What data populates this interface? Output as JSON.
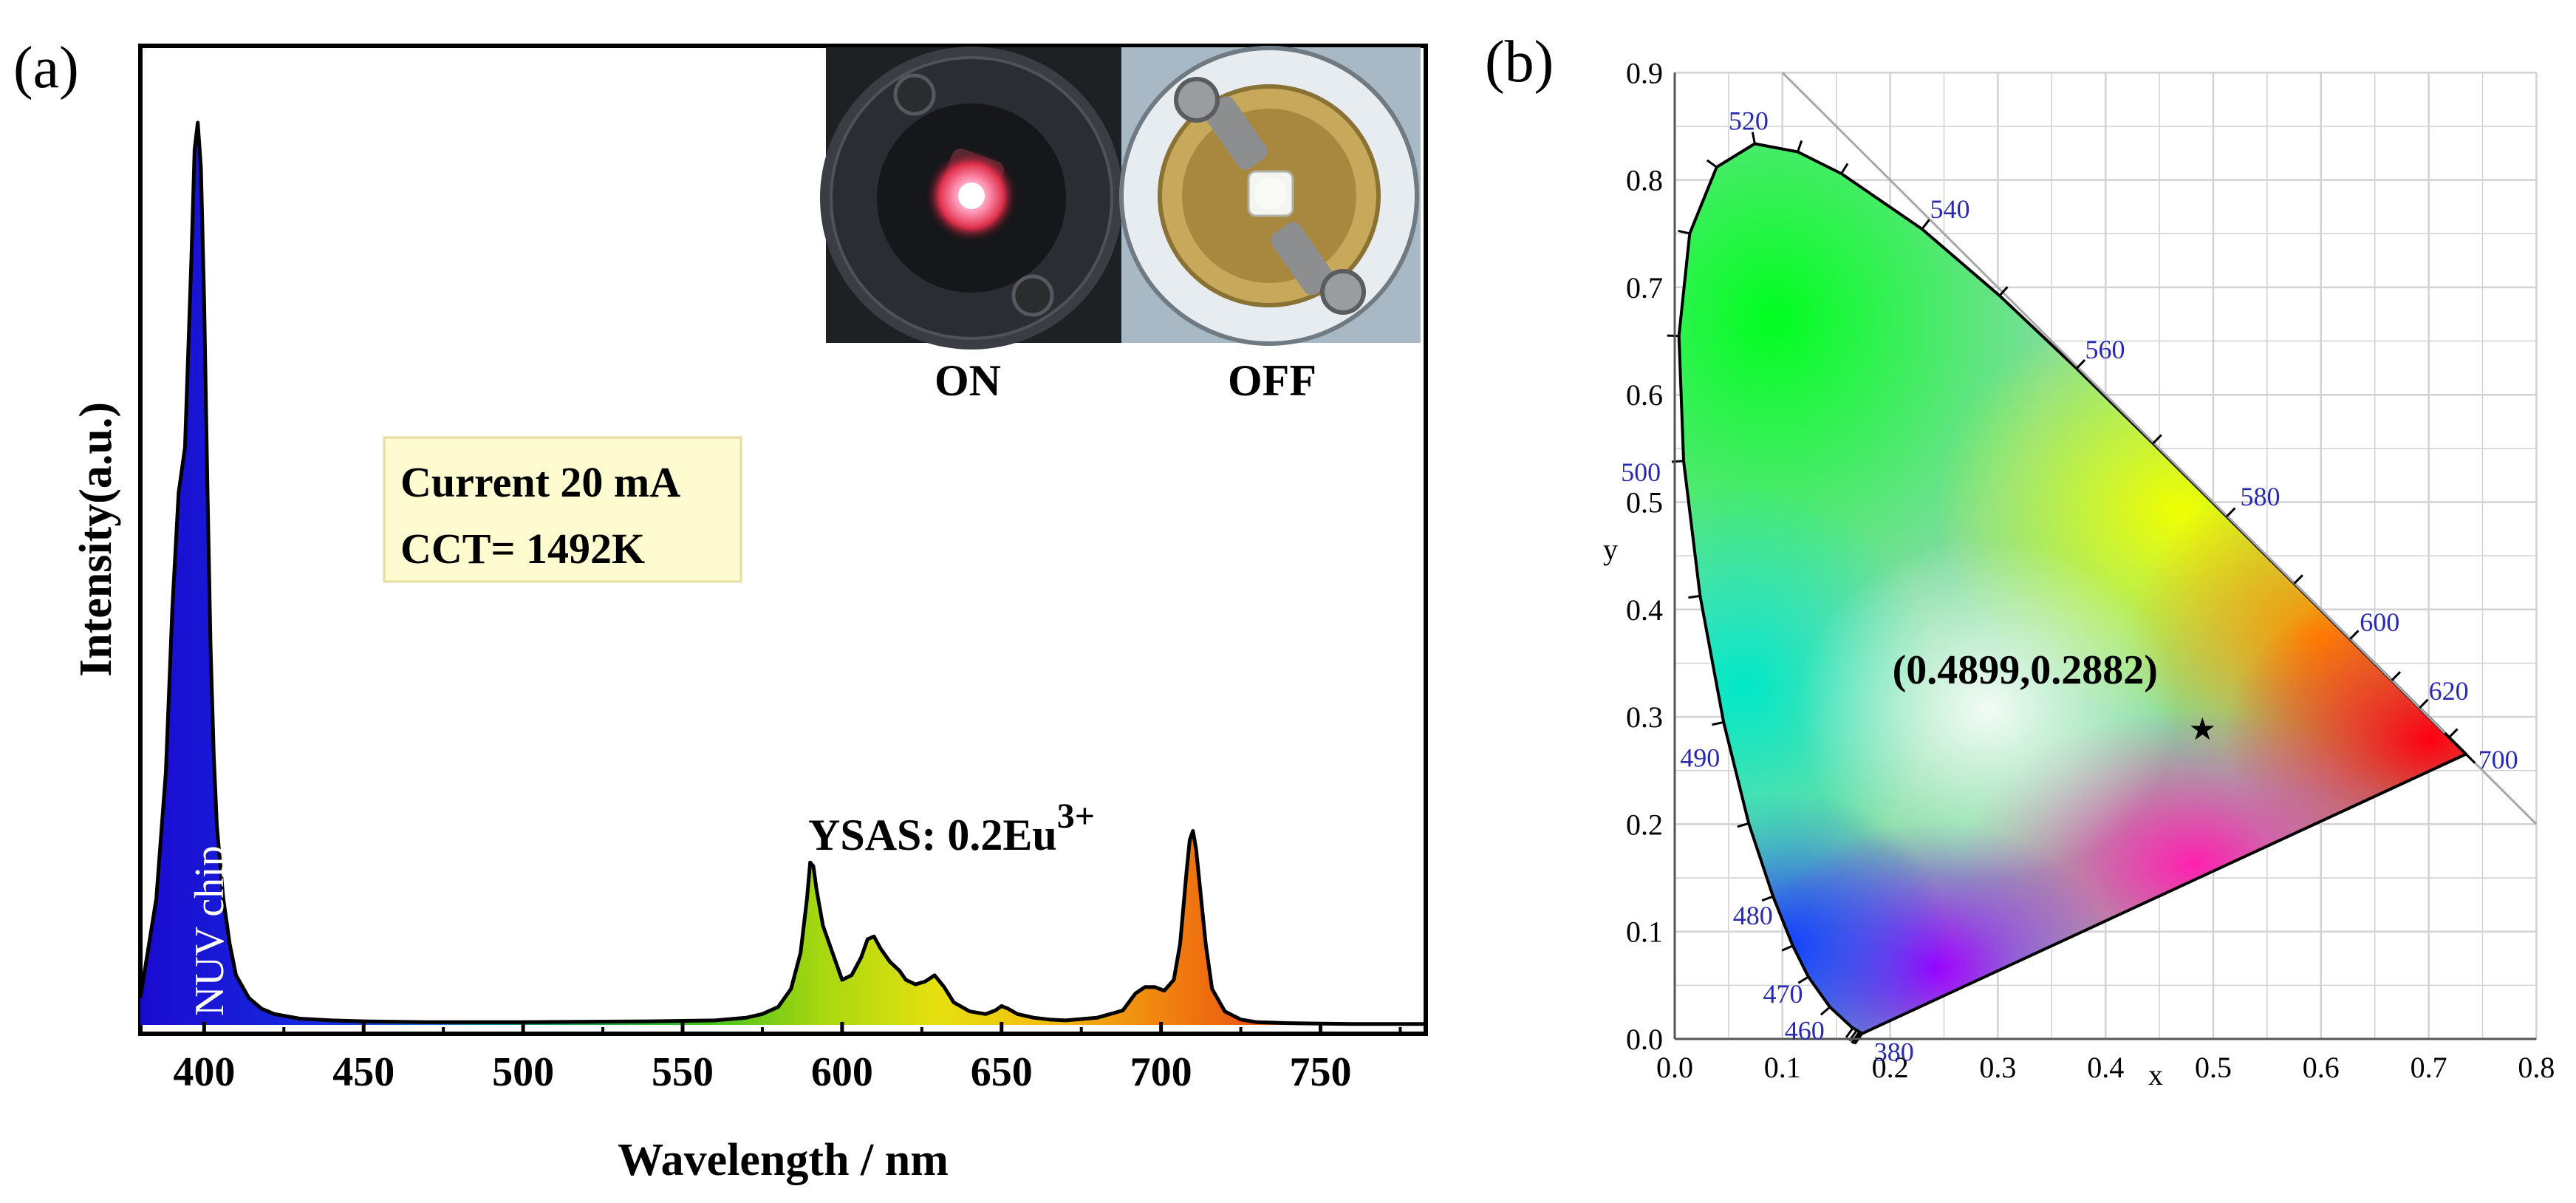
{
  "panels": {
    "a": {
      "label": "(a)"
    },
    "b": {
      "label": "(b)"
    }
  },
  "colors": {
    "nuv_fill": "#1010c8",
    "legend_bg": "#fffbd0",
    "legend_border": "#e6dca0",
    "axis": "#000000",
    "cie_label": "#2a2ab0",
    "cie_grid": "#c8c8c8"
  },
  "chart_data": [
    {
      "id": "spectrum",
      "type": "area",
      "title": "",
      "xlabel": "Wavelength / nm",
      "ylabel": "Intensity(a.u.)",
      "xlim": [
        380,
        783
      ],
      "ylim": [
        0,
        1.08
      ],
      "x_ticks": [
        400,
        450,
        500,
        550,
        600,
        650,
        700,
        750
      ],
      "x_tick_labels": [
        "400",
        "450",
        "500",
        "550",
        "600",
        "650",
        "700",
        "750"
      ],
      "y_ticks_shown": false,
      "series": [
        {
          "name": "NUV chip",
          "x": [
            380,
            385,
            388,
            390,
            392,
            394,
            396,
            397,
            398,
            399,
            400,
            401,
            402,
            403,
            404,
            406,
            408,
            410,
            414,
            418,
            422,
            430,
            440,
            450,
            470,
            500,
            540,
            560,
            570,
            575,
            580,
            584,
            587,
            589,
            590,
            591,
            592,
            594,
            596,
            598,
            600,
            603,
            606,
            608,
            610,
            612,
            615,
            618,
            620,
            623,
            626,
            629,
            632,
            635,
            640,
            645,
            648,
            650,
            652,
            655,
            660,
            665,
            670,
            680,
            688,
            692,
            695,
            698,
            701,
            704,
            706,
            708,
            709,
            710,
            711,
            712,
            714,
            716,
            720,
            725,
            730,
            740,
            760,
            783
          ],
          "values": [
            0.03,
            0.14,
            0.28,
            0.46,
            0.59,
            0.64,
            0.85,
            0.97,
            1.0,
            0.95,
            0.8,
            0.6,
            0.42,
            0.3,
            0.22,
            0.14,
            0.09,
            0.055,
            0.03,
            0.018,
            0.012,
            0.007,
            0.005,
            0.004,
            0.003,
            0.003,
            0.004,
            0.005,
            0.008,
            0.012,
            0.02,
            0.04,
            0.08,
            0.14,
            0.18,
            0.176,
            0.15,
            0.11,
            0.09,
            0.07,
            0.05,
            0.055,
            0.075,
            0.095,
            0.098,
            0.085,
            0.07,
            0.06,
            0.05,
            0.045,
            0.048,
            0.055,
            0.042,
            0.025,
            0.015,
            0.012,
            0.016,
            0.021,
            0.018,
            0.012,
            0.008,
            0.006,
            0.005,
            0.008,
            0.016,
            0.035,
            0.042,
            0.042,
            0.038,
            0.05,
            0.09,
            0.17,
            0.205,
            0.215,
            0.195,
            0.16,
            0.09,
            0.04,
            0.015,
            0.006,
            0.003,
            0.002,
            0.001,
            0.001
          ]
        }
      ],
      "annotations": {
        "nuv_label": "NUV chip",
        "phosphor_label": "YSAS: 0.2Eu",
        "phosphor_superscript": "3+",
        "legend_line1": "Current 20 mA",
        "legend_line2": "CCT= 1492K",
        "inset_on": "ON",
        "inset_off": "OFF"
      }
    },
    {
      "id": "cie",
      "type": "scatter",
      "title": "",
      "xlabel": "x",
      "ylabel": "y",
      "xlim": [
        0,
        0.8
      ],
      "ylim": [
        0,
        0.9
      ],
      "x_ticks": [
        0.0,
        0.1,
        0.2,
        0.3,
        0.4,
        0.5,
        0.6,
        0.7,
        0.8
      ],
      "x_tick_labels": [
        "0.0",
        "0.1",
        "0.2",
        "0.3",
        "0.4",
        "0.5",
        "0.6",
        "0.7",
        "0.8"
      ],
      "y_ticks": [
        0.0,
        0.1,
        0.2,
        0.3,
        0.4,
        0.5,
        0.6,
        0.7,
        0.8,
        0.9
      ],
      "y_tick_labels": [
        "0.0",
        "0.1",
        "0.2",
        "0.3",
        "0.4",
        "0.5",
        "0.6",
        "0.7",
        "0.8",
        "0.9"
      ],
      "grid": true,
      "locus": [
        {
          "nm": 380,
          "x": 0.1741,
          "y": 0.005
        },
        {
          "nm": 440,
          "x": 0.1644,
          "y": 0.0109
        },
        {
          "nm": 460,
          "x": 0.144,
          "y": 0.0297
        },
        {
          "nm": 470,
          "x": 0.1241,
          "y": 0.0578
        },
        {
          "nm": 475,
          "x": 0.1096,
          "y": 0.0868
        },
        {
          "nm": 480,
          "x": 0.0913,
          "y": 0.1327
        },
        {
          "nm": 485,
          "x": 0.0687,
          "y": 0.2007
        },
        {
          "nm": 490,
          "x": 0.0454,
          "y": 0.295
        },
        {
          "nm": 495,
          "x": 0.0235,
          "y": 0.4127
        },
        {
          "nm": 500,
          "x": 0.0082,
          "y": 0.5384
        },
        {
          "nm": 505,
          "x": 0.0039,
          "y": 0.6548
        },
        {
          "nm": 510,
          "x": 0.0139,
          "y": 0.7502
        },
        {
          "nm": 515,
          "x": 0.0389,
          "y": 0.812
        },
        {
          "nm": 520,
          "x": 0.0743,
          "y": 0.8338
        },
        {
          "nm": 525,
          "x": 0.1142,
          "y": 0.8262
        },
        {
          "nm": 530,
          "x": 0.1547,
          "y": 0.8059
        },
        {
          "nm": 540,
          "x": 0.2296,
          "y": 0.7543
        },
        {
          "nm": 550,
          "x": 0.3016,
          "y": 0.6923
        },
        {
          "nm": 560,
          "x": 0.3731,
          "y": 0.6245
        },
        {
          "nm": 570,
          "x": 0.4441,
          "y": 0.5547
        },
        {
          "nm": 580,
          "x": 0.5125,
          "y": 0.4866
        },
        {
          "nm": 590,
          "x": 0.5752,
          "y": 0.4242
        },
        {
          "nm": 600,
          "x": 0.627,
          "y": 0.3725
        },
        {
          "nm": 610,
          "x": 0.6658,
          "y": 0.334
        },
        {
          "nm": 620,
          "x": 0.6915,
          "y": 0.3083
        },
        {
          "nm": 640,
          "x": 0.719,
          "y": 0.2809
        },
        {
          "nm": 700,
          "x": 0.7347,
          "y": 0.2653
        }
      ],
      "wavelength_labels": [
        "380",
        "460",
        "470",
        "480",
        "490",
        "500",
        "520",
        "540",
        "560",
        "580",
        "600",
        "620",
        "700"
      ],
      "point": {
        "x": 0.4899,
        "y": 0.2882,
        "label": "(0.4899,0.2882)"
      }
    }
  ]
}
